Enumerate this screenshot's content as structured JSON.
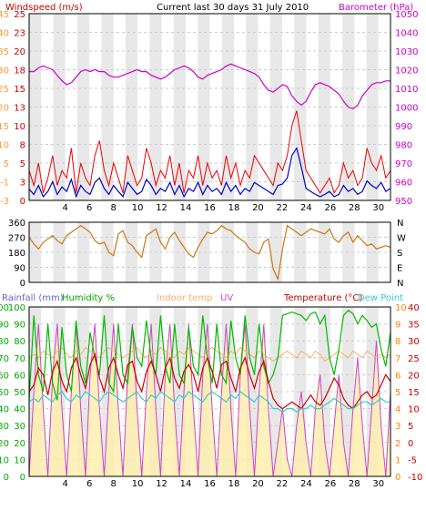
{
  "header": {
    "windspeed_label": "Windspeed (m/s)",
    "center_title": "Current last 30 days 31 July 2010",
    "barometer_label": "Barometer (hPa)"
  },
  "colors": {
    "wind_label": "#cc0000",
    "ms_axis": "#cc0000",
    "beaufort_axis": "#ff9933",
    "barometer": "#cc00cc",
    "gust": "#ee0000",
    "avg_wind": "#0000cc",
    "direction": "#cc7711",
    "rain_label": "#6666cc",
    "rain_axis": "#00aa00",
    "humidity": "#00bb00",
    "indoor": "#ffaa66",
    "uv": "#cc44cc",
    "temp": "#cc0000",
    "dew": "#33cccc",
    "temp_axis": "#cc0000",
    "uv_axis": "#ff8800",
    "grid": "#cccccc",
    "day_band": "#e8e8e8",
    "rain_fill": "#ffeeaa",
    "pressure_axis": "#cc00cc"
  },
  "chart_data": [
    {
      "type": "line",
      "id": "wind-baro",
      "x_ticks": [
        4,
        6,
        8,
        10,
        12,
        14,
        16,
        18,
        20,
        22,
        24,
        26,
        28,
        30
      ],
      "left_axis_ms": [
        25,
        23,
        20,
        18,
        15,
        13,
        10,
        8,
        5,
        3,
        0
      ],
      "left_axis_beaufort": [
        45,
        40,
        35,
        30,
        25,
        20,
        15,
        10,
        5,
        -1,
        -3
      ],
      "right_axis_hpa": [
        1050,
        1040,
        1030,
        1020,
        1010,
        1000,
        990,
        980,
        970,
        960,
        950
      ],
      "ylim_ms": [
        0,
        25
      ],
      "ylim_hpa": [
        950,
        1050
      ],
      "series": [
        {
          "name": "Barometer (hPa)",
          "values": [
            1019,
            1019,
            1021,
            1022,
            1021,
            1020,
            1017,
            1014,
            1012,
            1013,
            1016,
            1019,
            1020,
            1019,
            1020,
            1019,
            1019,
            1017,
            1016,
            1016,
            1017,
            1018,
            1019,
            1020,
            1019,
            1019,
            1017,
            1016,
            1015,
            1016,
            1018,
            1020,
            1021,
            1022,
            1021,
            1019,
            1016,
            1015,
            1017,
            1018,
            1019,
            1020,
            1022,
            1023,
            1022,
            1021,
            1020,
            1019,
            1018,
            1016,
            1012,
            1009,
            1008,
            1010,
            1012,
            1011,
            1006,
            1003,
            1001,
            1003,
            1008,
            1012,
            1013,
            1012,
            1011,
            1009,
            1007,
            1003,
            1000,
            999,
            1001,
            1006,
            1009,
            1012,
            1013,
            1013,
            1014,
            1014
          ]
        },
        {
          "name": "Gust (m/s)",
          "values": [
            4.0,
            2.0,
            5.0,
            1.0,
            3.0,
            6.0,
            2.0,
            4.0,
            3.0,
            7.0,
            1.0,
            5.0,
            3.0,
            2.0,
            6.0,
            8.0,
            4.0,
            2.0,
            5.0,
            3.0,
            1.0,
            6.0,
            4.0,
            2.0,
            3.0,
            7.0,
            5.0,
            2.0,
            4.0,
            3.0,
            6.0,
            2.0,
            5.0,
            1.0,
            4.0,
            3.0,
            6.0,
            2.0,
            5.0,
            3.0,
            4.0,
            2.0,
            6.0,
            3.0,
            5.0,
            2.0,
            4.0,
            3.0,
            6.0,
            5.0,
            4.0,
            3.0,
            2.0,
            5.0,
            4.0,
            6.0,
            10.0,
            12.0,
            8.0,
            4.0,
            3.0,
            2.0,
            1.0,
            2.0,
            3.0,
            1.0,
            2.0,
            5.0,
            3.0,
            4.0,
            2.0,
            3.0,
            7.0,
            5.0,
            4.0,
            6.0,
            3.0,
            4.0
          ]
        },
        {
          "name": "Wind (m/s)",
          "values": [
            1.5,
            0.8,
            2.0,
            0.5,
            1.2,
            2.5,
            0.8,
            1.8,
            1.2,
            2.8,
            0.5,
            2.0,
            1.2,
            0.8,
            2.4,
            3.0,
            1.6,
            0.8,
            2.0,
            1.2,
            0.5,
            2.4,
            1.6,
            0.8,
            1.2,
            2.8,
            2.0,
            0.8,
            1.6,
            1.2,
            2.4,
            0.8,
            2.0,
            0.5,
            1.6,
            1.2,
            2.4,
            0.8,
            2.0,
            1.2,
            1.6,
            0.8,
            2.4,
            1.2,
            2.0,
            0.8,
            1.6,
            1.2,
            2.4,
            2.0,
            1.6,
            1.2,
            0.8,
            2.0,
            2.2,
            3.0,
            6.0,
            7.0,
            4.5,
            1.6,
            1.2,
            0.8,
            0.5,
            0.8,
            1.2,
            0.5,
            0.8,
            2.0,
            1.2,
            1.6,
            0.8,
            1.2,
            2.6,
            2.0,
            1.6,
            2.4,
            1.2,
            1.6
          ]
        }
      ]
    },
    {
      "type": "line",
      "id": "direction",
      "x_ticks": [
        4,
        6,
        8,
        10,
        12,
        14,
        16,
        18,
        20,
        22,
        24,
        26,
        28,
        30
      ],
      "left_axis_deg": [
        360,
        270,
        180,
        90,
        0
      ],
      "right_axis_compass": [
        "N",
        "W",
        "S",
        "E",
        "N"
      ],
      "ylim": [
        0,
        360
      ],
      "series": [
        {
          "name": "Wind direction (°)",
          "values": [
            270,
            230,
            200,
            240,
            260,
            280,
            250,
            230,
            280,
            300,
            320,
            340,
            320,
            300,
            250,
            230,
            240,
            180,
            160,
            290,
            310,
            240,
            220,
            180,
            150,
            280,
            300,
            320,
            240,
            200,
            270,
            300,
            250,
            210,
            170,
            150,
            210,
            260,
            300,
            290,
            310,
            340,
            320,
            310,
            280,
            260,
            240,
            200,
            180,
            170,
            240,
            260,
            80,
            20,
            200,
            340,
            320,
            300,
            280,
            300,
            320,
            310,
            300,
            290,
            320,
            260,
            240,
            280,
            300,
            240,
            280,
            250,
            220,
            230,
            200,
            210,
            220,
            210
          ]
        }
      ]
    },
    {
      "type": "line",
      "id": "climate",
      "legend": [
        "Rainfall (mm)",
        "Humidity %",
        "Indoor temp",
        "UV",
        "Temperature (°C)",
        "Dew Point"
      ],
      "x_ticks": [
        4,
        6,
        8,
        10,
        12,
        14,
        16,
        18,
        20,
        22,
        24,
        26,
        28,
        30
      ],
      "left_axis_humidity": [
        100,
        90,
        80,
        70,
        60,
        50,
        40,
        30,
        20,
        10,
        0
      ],
      "left_axis_rain": [
        100,
        90,
        80,
        70,
        60,
        50,
        40,
        30,
        20,
        10,
        0
      ],
      "right_axis_uv": [
        10,
        9,
        8,
        7,
        6,
        5,
        4,
        3,
        2,
        1,
        0
      ],
      "right_axis_temp": [
        40,
        35,
        30,
        25,
        20,
        15,
        10,
        5,
        0,
        -5,
        -10
      ],
      "ylim_humidity": [
        0,
        100
      ],
      "ylim_temp": [
        -10,
        40
      ],
      "series": [
        {
          "name": "Humidity %",
          "values": [
            45,
            95,
            60,
            50,
            90,
            55,
            45,
            88,
            60,
            50,
            92,
            65,
            55,
            85,
            70,
            60,
            95,
            55,
            50,
            90,
            60,
            55,
            88,
            70,
            65,
            92,
            70,
            60,
            95,
            65,
            55,
            90,
            60,
            55,
            88,
            65,
            60,
            95,
            70,
            55,
            90,
            60,
            55,
            92,
            70,
            60,
            95,
            70,
            60,
            90,
            65,
            55,
            60,
            70,
            95,
            96,
            97,
            96,
            95,
            92,
            96,
            97,
            90,
            95,
            70,
            60,
            75,
            95,
            98,
            96,
            90,
            95,
            92,
            88,
            90,
            75,
            65,
            85
          ]
        },
        {
          "name": "Indoor temp",
          "values": [
            25,
            26,
            25,
            27,
            26,
            25,
            27,
            28,
            26,
            25,
            27,
            26,
            28,
            27,
            26,
            25,
            27,
            28,
            27,
            26,
            25,
            26,
            27,
            28,
            26,
            25,
            27,
            26,
            28,
            27,
            26,
            25,
            27,
            26,
            28,
            27,
            26,
            25,
            27,
            28,
            27,
            26,
            25,
            27,
            26,
            28,
            27,
            26,
            25,
            27,
            26,
            25,
            24,
            25,
            26,
            27,
            26,
            25,
            27,
            26,
            25,
            27,
            26,
            24,
            25,
            26,
            27,
            26,
            25,
            27,
            26,
            25,
            27,
            26,
            25,
            26,
            25,
            26
          ]
        },
        {
          "name": "Temperature (°C)",
          "values": [
            15,
            17,
            22,
            20,
            14,
            21,
            24,
            18,
            15,
            22,
            25,
            20,
            16,
            23,
            26,
            19,
            15,
            22,
            25,
            20,
            16,
            23,
            24,
            18,
            15,
            21,
            24,
            20,
            15,
            22,
            25,
            19,
            16,
            21,
            23,
            20,
            15,
            22,
            25,
            21,
            16,
            23,
            24,
            19,
            15,
            22,
            25,
            20,
            16,
            21,
            24,
            18,
            13,
            11,
            10,
            11,
            12,
            11,
            10,
            12,
            14,
            12,
            11,
            13,
            16,
            19,
            17,
            13,
            11,
            10,
            12,
            14,
            15,
            13,
            14,
            17,
            20,
            18
          ]
        },
        {
          "name": "Dew Point",
          "values": [
            12,
            13,
            12,
            14,
            13,
            12,
            14,
            15,
            13,
            12,
            14,
            13,
            15,
            14,
            13,
            12,
            14,
            15,
            14,
            13,
            12,
            13,
            14,
            15,
            13,
            12,
            14,
            13,
            15,
            14,
            13,
            12,
            14,
            13,
            15,
            14,
            13,
            12,
            14,
            15,
            14,
            13,
            12,
            14,
            13,
            15,
            14,
            13,
            12,
            14,
            13,
            12,
            10,
            10,
            9,
            10,
            10,
            9,
            10,
            10,
            11,
            10,
            10,
            11,
            12,
            13,
            12,
            11,
            10,
            10,
            11,
            12,
            12,
            11,
            12,
            13,
            12,
            12
          ]
        },
        {
          "name": "UV",
          "values": [
            0,
            5,
            9,
            4,
            0,
            6,
            9,
            4,
            0,
            5,
            9,
            4,
            0,
            6,
            9,
            4,
            0,
            5,
            9,
            4,
            0,
            6,
            9,
            4,
            0,
            5,
            9,
            4,
            0,
            6,
            9,
            4,
            0,
            5,
            9,
            4,
            0,
            6,
            9,
            4,
            0,
            5,
            9,
            4,
            0,
            6,
            9,
            4,
            0,
            5,
            9,
            4,
            0,
            2,
            4,
            1,
            0,
            3,
            5,
            2,
            0,
            4,
            6,
            2,
            0,
            3,
            6,
            2,
            0,
            4,
            7,
            3,
            0,
            4,
            8,
            3,
            0,
            5
          ]
        },
        {
          "name": "Rainfall (mm)",
          "values": [
            0,
            0,
            0,
            0,
            0,
            0,
            0,
            0,
            0,
            0,
            0,
            0,
            0,
            0,
            0,
            0,
            0,
            0,
            0,
            0,
            0,
            0,
            0,
            0,
            0,
            0,
            0,
            0,
            0,
            0,
            0,
            0,
            0,
            0,
            0,
            0,
            0,
            0,
            0,
            0,
            0,
            0,
            0,
            0,
            0,
            0,
            0,
            0,
            0,
            0,
            0,
            0,
            0,
            0,
            0,
            0,
            0,
            0,
            0,
            0,
            0,
            0,
            0,
            0,
            0,
            0,
            0,
            0,
            0,
            0,
            0,
            0,
            0,
            0,
            0,
            0,
            0,
            0
          ]
        }
      ]
    }
  ]
}
